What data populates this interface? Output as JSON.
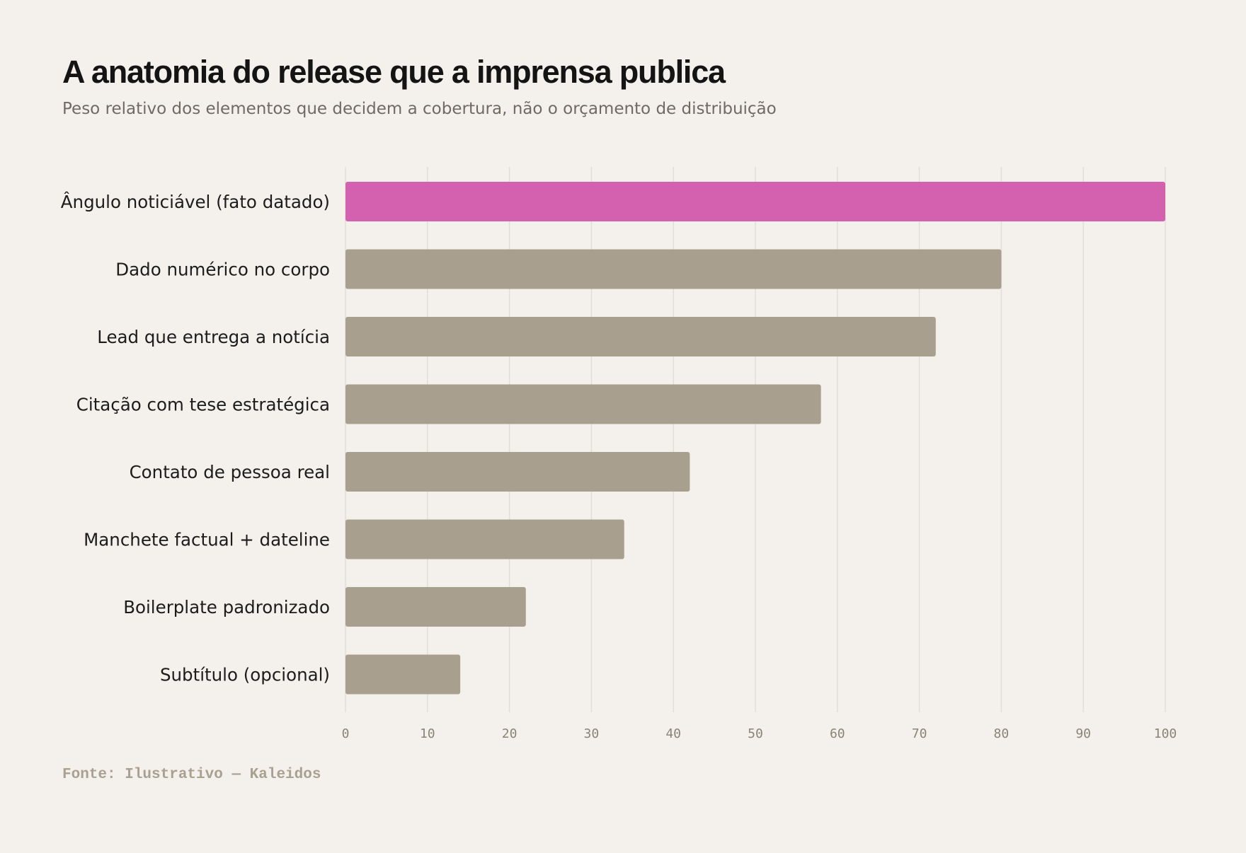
{
  "title": "A anatomia do release que a imprensa publica",
  "subtitle": "Peso relativo dos elementos que decidem a cobertura, não o orçamento de distribuição",
  "source": "Fonte: Ilustrativo — Kaleidos",
  "colors": {
    "background": "#f4f1ec",
    "highlight": "#d461b0",
    "bar": "#a89f8f",
    "grid": "#e2ded7",
    "tick_text": "#8a8378"
  },
  "chart_data": {
    "type": "bar",
    "orientation": "horizontal",
    "categories": [
      "Ângulo noticiável (fato datado)",
      "Dado numérico no corpo",
      "Lead que entrega a notícia",
      "Citação com tese estratégica",
      "Contato de pessoa real",
      "Manchete factual + dateline",
      "Boilerplate padronizado",
      "Subtítulo (opcional)"
    ],
    "values": [
      100,
      80,
      72,
      58,
      42,
      34,
      22,
      14
    ],
    "highlight_index": 0,
    "xlim": [
      0,
      100
    ],
    "xticks": [
      0,
      10,
      20,
      30,
      40,
      50,
      60,
      70,
      80,
      90,
      100
    ],
    "xlabel": "",
    "ylabel": "",
    "grid": "vertical",
    "legend": "none"
  }
}
